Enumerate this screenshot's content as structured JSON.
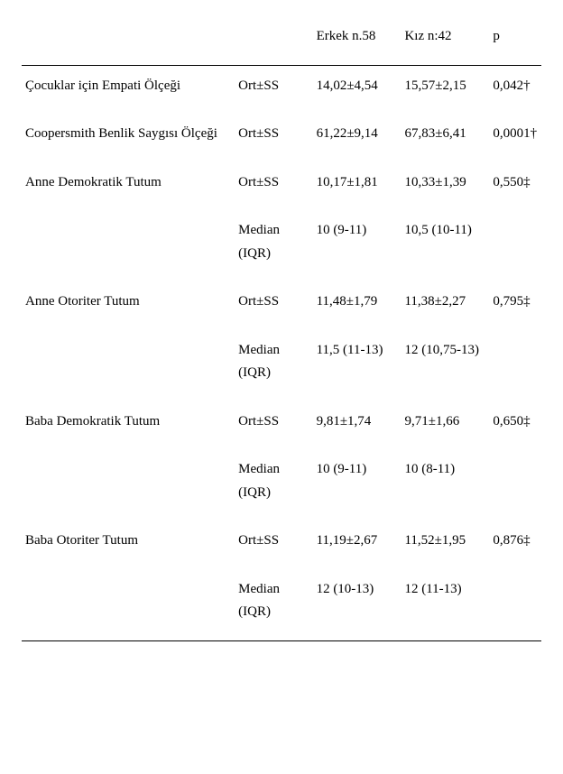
{
  "header": {
    "col3": "Erkek n.58",
    "col4": "Kız n:42",
    "col5": "p"
  },
  "rows": [
    {
      "label": "Çocuklar için Empati Ölçeği",
      "stat": "Ort±SS",
      "male": "14,02±4,54",
      "female": "15,57±2,15",
      "p": "0,042†"
    },
    {
      "label": "Coopersmith Benlik Saygısı Ölçeği",
      "stat": "Ort±SS",
      "male": "61,22±9,14",
      "female": "67,83±6,41",
      "p": "0,0001†"
    },
    {
      "label": "Anne Demokratik Tutum",
      "stat": "Ort±SS",
      "male": "10,17±1,81",
      "female": "10,33±1,39",
      "p": "0,550‡"
    },
    {
      "label": "",
      "stat": "Median (IQR)",
      "male": "10 (9-11)",
      "female": "10,5 (10-11)",
      "p": ""
    },
    {
      "label": "Anne Otoriter Tutum",
      "stat": "Ort±SS",
      "male": "11,48±1,79",
      "female": "11,38±2,27",
      "p": "0,795‡"
    },
    {
      "label": "",
      "stat": "Median (IQR)",
      "male": "11,5 (11-13)",
      "female": "12 (10,75-13)",
      "p": ""
    },
    {
      "label": "Baba Demokratik Tutum",
      "stat": "Ort±SS",
      "male": "9,81±1,74",
      "female": "9,71±1,66",
      "p": "0,650‡"
    },
    {
      "label": "",
      "stat": "Median (IQR)",
      "male": "10 (9-11)",
      "female": "10 (8-11)",
      "p": ""
    },
    {
      "label": "Baba Otoriter Tutum",
      "stat": "Ort±SS",
      "male": "11,19±2,67",
      "female": "11,52±1,95",
      "p": "0,876‡"
    },
    {
      "label": "",
      "stat": "Median (IQR)",
      "male": "12 (10-13)",
      "female": "12 (11-13)",
      "p": ""
    }
  ]
}
